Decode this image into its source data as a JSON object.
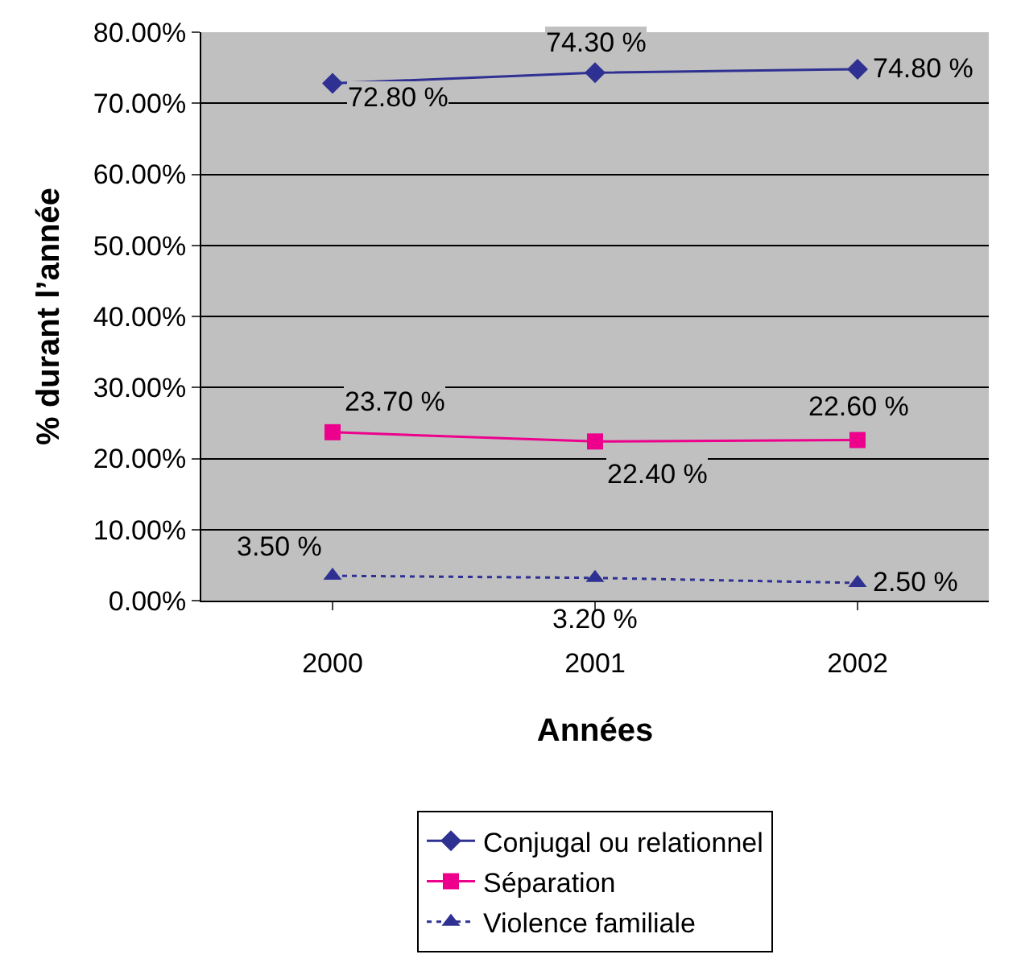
{
  "chart_data": {
    "type": "line",
    "xlabel": "Années",
    "ylabel": "% durant l’année",
    "categories": [
      "2000",
      "2001",
      "2002"
    ],
    "series": [
      {
        "name": "Conjugal ou relationnel",
        "color": "#2e3192",
        "values": [
          72.8,
          74.3,
          74.8
        ],
        "value_labels": [
          "72.80 %",
          "74.30 %",
          "74.80 %"
        ],
        "marker": "diamond",
        "line_style": "solid"
      },
      {
        "name": "Séparation",
        "color": "#ec008c",
        "values": [
          23.7,
          22.4,
          22.6
        ],
        "value_labels": [
          "23.70 %",
          "22.40 %",
          "22.60 %"
        ],
        "marker": "square",
        "line_style": "solid"
      },
      {
        "name": "Violence familiale",
        "color": "#2e3192",
        "values": [
          3.5,
          3.2,
          2.5
        ],
        "value_labels": [
          "3.50 %",
          "3.20 %",
          "2.50 %"
        ],
        "marker": "triangle",
        "line_style": "dotted"
      }
    ],
    "ylim": [
      0,
      80
    ],
    "yticks": [
      {
        "value": 0,
        "label": "0.00%"
      },
      {
        "value": 10,
        "label": "10.00%"
      },
      {
        "value": 20,
        "label": "20.00%"
      },
      {
        "value": 30,
        "label": "30.00%"
      },
      {
        "value": 40,
        "label": "40.00%"
      },
      {
        "value": 50,
        "label": "50.00%"
      },
      {
        "value": 60,
        "label": "60.00%"
      },
      {
        "value": 70,
        "label": "70.00%"
      },
      {
        "value": 80,
        "label": "80.00%"
      }
    ],
    "grid": "y",
    "legend": "bottom"
  }
}
